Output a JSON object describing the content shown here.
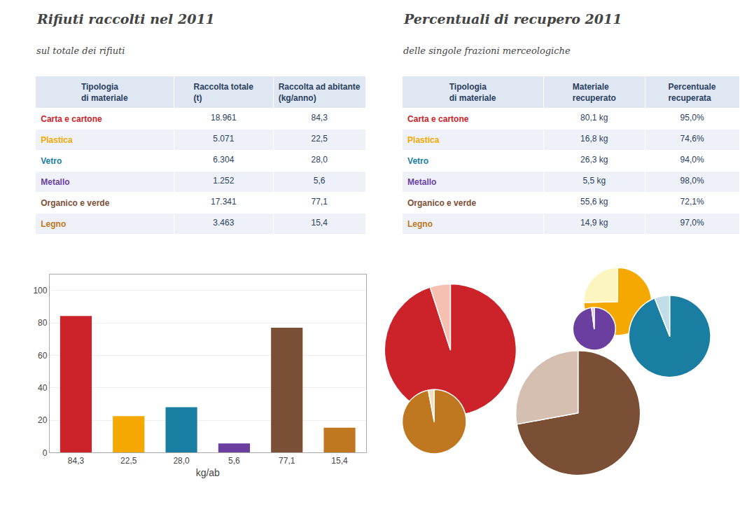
{
  "chart_data": [
    {
      "type": "table",
      "title": "Rifiuti raccolti nel 2011",
      "subtitle": "sul totale dei rifiuti",
      "columns": [
        "Tipologia\ndi materiale",
        "Raccolta totale\n(t)",
        "Raccolta ad abitante\n(kg/anno)"
      ],
      "rows": [
        [
          "Carta e cartone",
          "18.961",
          "84,3"
        ],
        [
          "Plastica",
          "5.071",
          "22,5"
        ],
        [
          "Vetro",
          "6.304",
          "28,0"
        ],
        [
          "Metallo",
          "1.252",
          "5,6"
        ],
        [
          "Organico e verde",
          "17.341",
          "77,1"
        ],
        [
          "Legno",
          "3.463",
          "15,4"
        ]
      ],
      "colors": [
        "#cc2229",
        "#f5a800",
        "#1a7ea3",
        "#6b3fa0",
        "#7b4f36",
        "#c07820"
      ]
    },
    {
      "type": "table",
      "title": "Percentuali di recupero 2011",
      "subtitle": "delle singole frazioni merceologiche",
      "columns": [
        "Tipologia\ndi materiale",
        "Materiale\nrecuperato",
        "Percentuale\nrecuperata"
      ],
      "rows": [
        [
          "Carta e cartone",
          "80,1 kg",
          "95,0%"
        ],
        [
          "Plastica",
          "16,8 kg",
          "74,6%"
        ],
        [
          "Vetro",
          "26,3 kg",
          "94,0%"
        ],
        [
          "Metallo",
          "5,5 kg",
          "98,0%"
        ],
        [
          "Organico e verde",
          "55,6 kg",
          "72,1%"
        ],
        [
          "Legno",
          "14,9 kg",
          "97,0%"
        ]
      ],
      "colors": [
        "#cc2229",
        "#f5a800",
        "#1a7ea3",
        "#6b3fa0",
        "#7b4f36",
        "#c07820"
      ]
    },
    {
      "type": "bar",
      "categories": [
        "84,3",
        "22,5",
        "28,0",
        "5,6",
        "77,1",
        "15,4"
      ],
      "values": [
        84.3,
        22.5,
        28.0,
        5.6,
        77.1,
        15.4
      ],
      "colors": [
        "#cc2229",
        "#f5a800",
        "#1a7ea3",
        "#6b3fa0",
        "#7b4f36",
        "#c07820"
      ],
      "xlabel": "kg/ab",
      "ylim": [
        0,
        110
      ],
      "yticks": [
        0,
        20,
        40,
        60,
        80,
        100
      ],
      "grid": true
    },
    {
      "type": "pie",
      "values": [
        95.0,
        5.0
      ],
      "colors": [
        "#cc2229",
        "#f5c0b0"
      ]
    },
    {
      "type": "pie",
      "values": [
        74.6,
        25.4
      ],
      "colors": [
        "#f5a800",
        "#fdf5c0"
      ]
    },
    {
      "type": "pie",
      "values": [
        94.0,
        6.0
      ],
      "colors": [
        "#1a7ea3",
        "#c0dde8"
      ]
    },
    {
      "type": "pie",
      "values": [
        98.0,
        2.0
      ],
      "colors": [
        "#6b3fa0",
        "#d8c0e8"
      ]
    },
    {
      "type": "pie",
      "values": [
        72.1,
        27.9
      ],
      "colors": [
        "#7b4f36",
        "#d4bfb0"
      ]
    },
    {
      "type": "pie",
      "values": [
        97.0,
        3.0
      ],
      "colors": [
        "#c07820",
        "#ede0c0"
      ]
    }
  ]
}
